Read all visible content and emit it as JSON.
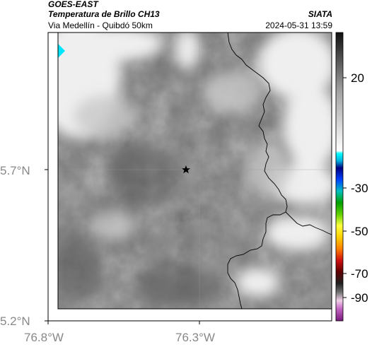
{
  "header": {
    "satellite": "GOES-EAST",
    "product": "Temperatura de Brillo CH13",
    "region": "Via Medellín - Quibdó 50km",
    "organization": "SIATA",
    "timestamp": "2024-05-31 13:59"
  },
  "axes": {
    "y_ticks": [
      "5.7°N",
      "5.2°N"
    ],
    "x_ticks": [
      "76.8°W",
      "76.3°W"
    ]
  },
  "colorbar": {
    "ticks": [
      "20",
      "-30",
      "-50",
      "-70",
      "-90"
    ],
    "unit": ""
  },
  "marker": {
    "icon": "star-icon"
  },
  "colors": {
    "map_gray": "#808080",
    "cold_cloud": "#ececec",
    "cyan_spot": "#00e5ff",
    "border_line": "#000000"
  }
}
